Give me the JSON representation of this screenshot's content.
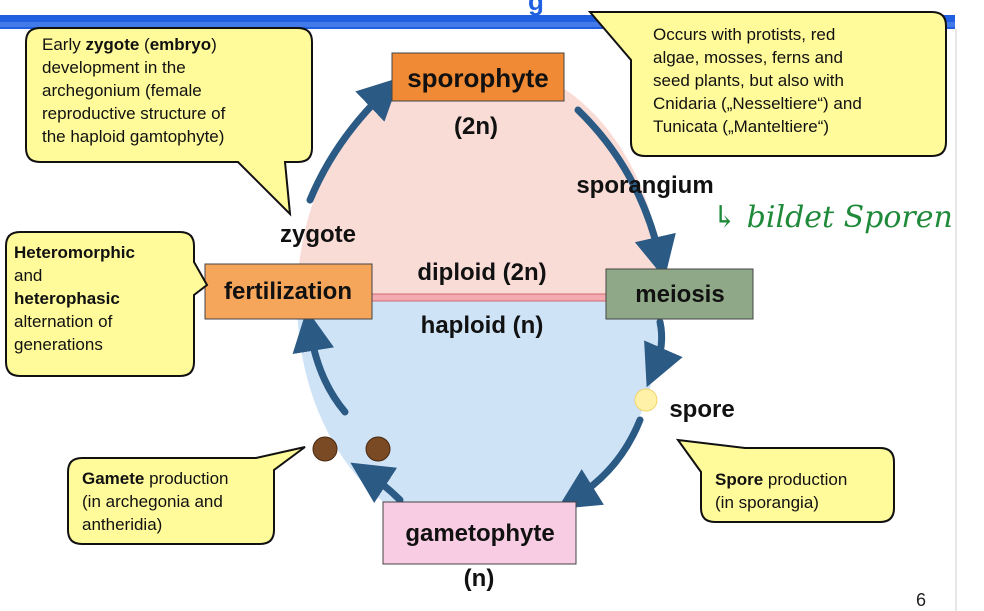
{
  "header_bar_color": "#1f5fe0",
  "cycle": {
    "upper_fill": "#fadcd6",
    "lower_fill": "#cfe3f7",
    "arrow_color": "#2b5a85"
  },
  "nodes": {
    "sporophyte": {
      "label": "sporophyte",
      "ploidy": "(2n)",
      "color": "#f08a34"
    },
    "gametophyte": {
      "label": "gametophyte",
      "ploidy": "(n)",
      "color": "#f8cde3"
    },
    "fertilization": {
      "label": "fertilization",
      "color": "#f5a65b"
    },
    "meiosis": {
      "label": "meiosis",
      "color": "#8fa887"
    }
  },
  "labels": {
    "sporangium": "sporangium",
    "zygote": "zygote",
    "diploid": "diploid (2n)",
    "haploid": "haploid (n)",
    "spore": "spore"
  },
  "handwritten_note": "↳ bildet Sporen",
  "callouts": {
    "zygote": {
      "lines": [
        [
          {
            "t": "Early ",
            "b": false
          },
          {
            "t": "zygote",
            "b": true
          },
          {
            "t": " (",
            "b": false
          },
          {
            "t": "embryo",
            "b": true
          },
          {
            "t": ")",
            "b": false
          }
        ],
        [
          {
            "t": "development in the",
            "b": false
          }
        ],
        [
          {
            "t": "archegonium (female",
            "b": false
          }
        ],
        [
          {
            "t": "reproductive structure of",
            "b": false
          }
        ],
        [
          {
            "t": "the haploid gamtophyte)",
            "b": false
          }
        ]
      ]
    },
    "occurs": {
      "lines": [
        [
          {
            "t": "Occurs with protists, red",
            "b": false
          }
        ],
        [
          {
            "t": "algae, mosses, ferns and",
            "b": false
          }
        ],
        [
          {
            "t": "seed plants, but also with",
            "b": false
          }
        ],
        [
          {
            "t": "Cnidaria („Nesseltiere“) and",
            "b": false
          }
        ],
        [
          {
            "t": "Tunicata („Manteltiere“)",
            "b": false
          }
        ]
      ]
    },
    "heteromorphic": {
      "lines": [
        [
          {
            "t": "Heteromorphic",
            "b": true
          }
        ],
        [
          {
            "t": "and",
            "b": false
          }
        ],
        [
          {
            "t": "heterophasic",
            "b": true
          }
        ],
        [
          {
            "t": "alternation of",
            "b": false
          }
        ],
        [
          {
            "t": "generations",
            "b": false
          }
        ]
      ]
    },
    "gamete": {
      "lines": [
        [
          {
            "t": "Gamete",
            "b": true
          },
          {
            "t": " production",
            "b": false
          }
        ],
        [
          {
            "t": "(in archegonia and",
            "b": false
          }
        ],
        [
          {
            "t": "antheridia)",
            "b": false
          }
        ]
      ]
    },
    "spore_prod": {
      "lines": [
        [
          {
            "t": "Spore",
            "b": true
          },
          {
            "t": " production",
            "b": false
          }
        ],
        [
          {
            "t": "(in sporangia)",
            "b": false
          }
        ]
      ]
    }
  },
  "callout_fill": "#fffb9a",
  "page_number": "6"
}
